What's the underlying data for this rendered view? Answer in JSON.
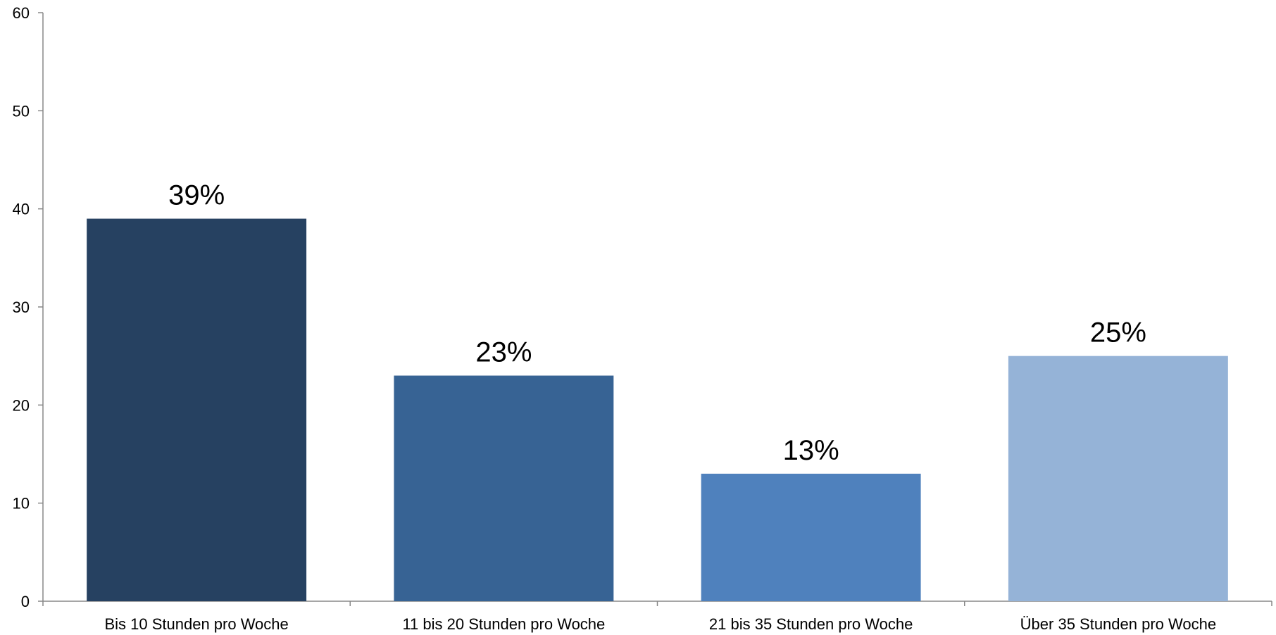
{
  "chart_data": {
    "type": "bar",
    "title": "",
    "xlabel": "",
    "ylabel": "",
    "ylim": [
      0,
      60
    ],
    "yticks": [
      0,
      10,
      20,
      30,
      40,
      50,
      60
    ],
    "grid": false,
    "legend": "none",
    "categories": [
      "Bis 10 Stunden pro Woche",
      "11 bis 20 Stunden pro Woche",
      "21 bis 35 Stunden pro Woche",
      "Über 35 Stunden pro Woche"
    ],
    "values": [
      39,
      23,
      13,
      25
    ],
    "data_labels": [
      "39%",
      "23%",
      "13%",
      "25%"
    ],
    "colors": [
      "#264161",
      "#376394",
      "#4f81bd",
      "#95b3d7"
    ],
    "axis_color": "#888888"
  }
}
